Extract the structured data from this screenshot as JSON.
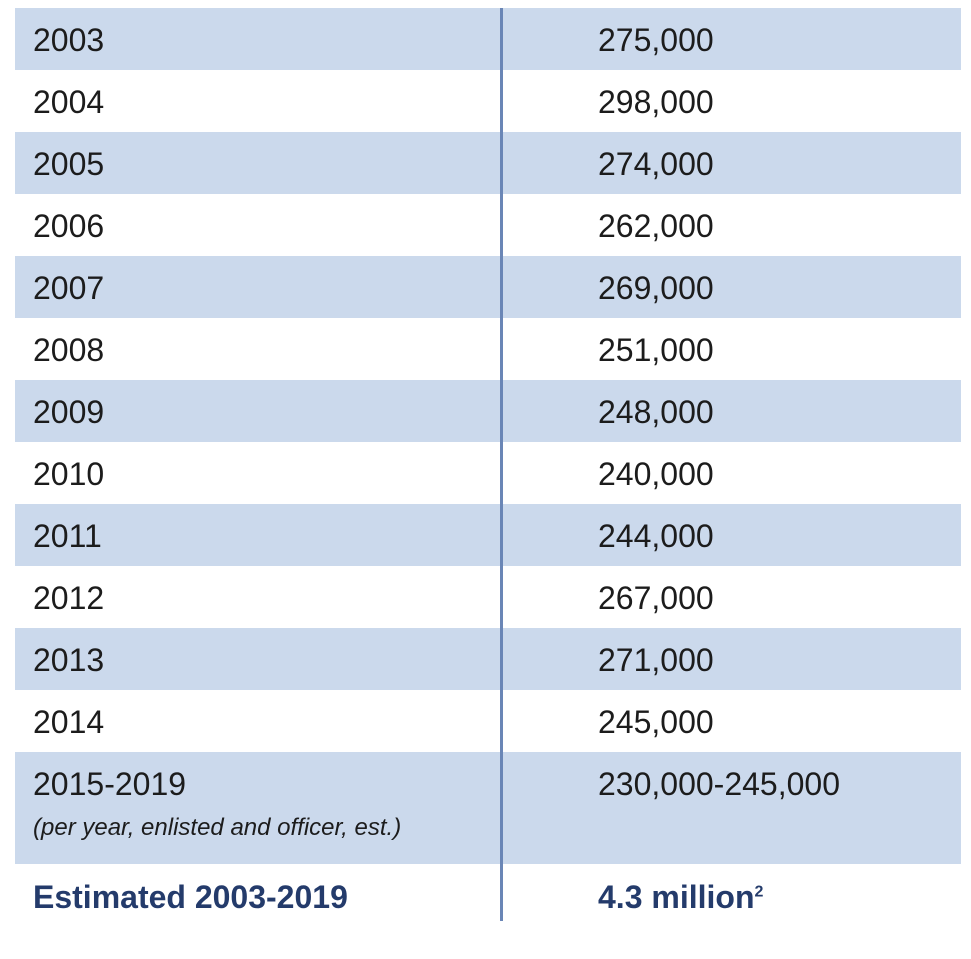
{
  "rows": [
    {
      "year": "2003",
      "value": "275,000"
    },
    {
      "year": "2004",
      "value": "298,000"
    },
    {
      "year": "2005",
      "value": "274,000"
    },
    {
      "year": "2006",
      "value": "262,000"
    },
    {
      "year": "2007",
      "value": "269,000"
    },
    {
      "year": "2008",
      "value": "251,000"
    },
    {
      "year": "2009",
      "value": "248,000"
    },
    {
      "year": "2010",
      "value": "240,000"
    },
    {
      "year": "2011",
      "value": "244,000"
    },
    {
      "year": "2012",
      "value": "267,000"
    },
    {
      "year": "2013",
      "value": "271,000"
    },
    {
      "year": "2014",
      "value": "245,000"
    },
    {
      "year": "2015-2019",
      "value": "230,000-245,000",
      "note": "(per year, enlisted and officer, est.)"
    }
  ],
  "total": {
    "label": "Estimated 2003-2019",
    "value": "4.3 million",
    "footnote": "2"
  },
  "colors": {
    "shaded_row": "#cbd9ec",
    "divider": "#6a86b6",
    "total_text": "#243b6b"
  }
}
